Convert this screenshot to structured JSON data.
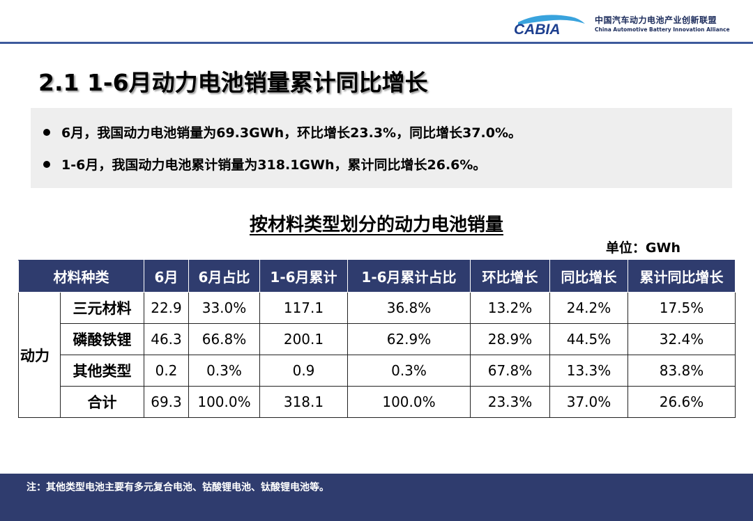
{
  "logo": {
    "mark_text": "CABIA",
    "name_cn": "中国汽车动力电池产业创新联盟",
    "name_en": "China Automotive Battery Innovation Alliance"
  },
  "page_title": "2.1 1-6月动力电池销量累计同比增长",
  "summary": {
    "bullets": [
      "6月，我国动力电池销量为69.3GWh，环比增长23.3%，同比增长37.0%。",
      "1-6月，我国动力电池累计销量为318.1GWh，累计同比增长26.6%。"
    ]
  },
  "table": {
    "title": "按材料类型划分的动力电池销量",
    "unit": "单位：GWh",
    "headers": [
      "材料种类",
      "6月",
      "6月占比",
      "1-6月累计",
      "1-6月累计占比",
      "环比增长",
      "同比增长",
      "累计同比增长"
    ],
    "group_label": "动力",
    "rows": [
      [
        "三元材料",
        "22.9",
        "33.0%",
        "117.1",
        "36.8%",
        "13.2%",
        "24.2%",
        "17.5%"
      ],
      [
        "磷酸铁锂",
        "46.3",
        "66.8%",
        "200.1",
        "62.9%",
        "28.9%",
        "44.5%",
        "32.4%"
      ],
      [
        "其他类型",
        "0.2",
        "0.3%",
        "0.9",
        "0.3%",
        "67.8%",
        "13.3%",
        "83.8%"
      ],
      [
        "合计",
        "69.3",
        "100.0%",
        "318.1",
        "100.0%",
        "23.3%",
        "37.0%",
        "26.6%"
      ]
    ]
  },
  "footer": {
    "note": "注：其他类型电池主要有多元复合电池、钴酸锂电池、钛酸锂电池等。"
  },
  "colors": {
    "navy": "#2f3c6e",
    "rule": "#3d5a9c",
    "summary_bg": "#eeeeee"
  }
}
